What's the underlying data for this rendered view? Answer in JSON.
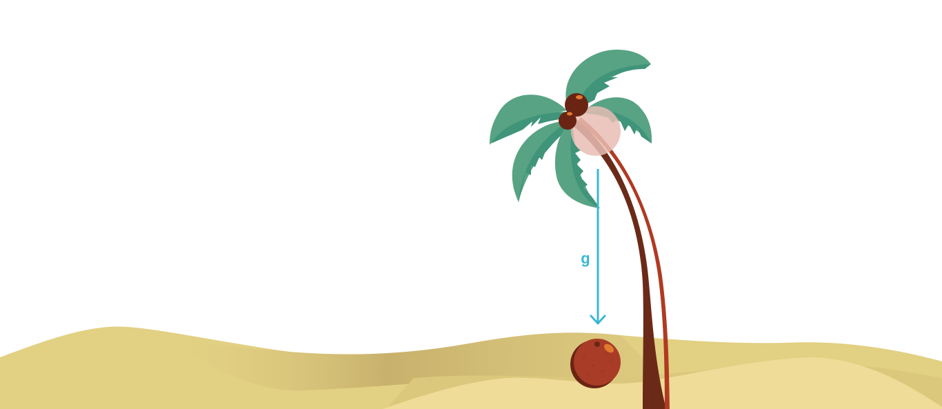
{
  "gravity": {
    "label": "g"
  },
  "colors": {
    "background": "#ffffff",
    "sand_back": "#e2d083",
    "sand_shadow": "#c9b46e",
    "sand_front": "#efdc98",
    "trunk": "#6b2a18",
    "trunk_highlight": "#b03a22",
    "leaves": "#3f9479",
    "leaves_light": "#58a384",
    "coconut": "#a83c27",
    "coconut_dark": "#6a2414",
    "coconut_highlight": "#e07b2e",
    "ghost_coconut": "#e7bdb4",
    "arrow": "#3bb7d4"
  },
  "icons": [
    "palm-tree",
    "coconut",
    "gravity-arrow"
  ]
}
